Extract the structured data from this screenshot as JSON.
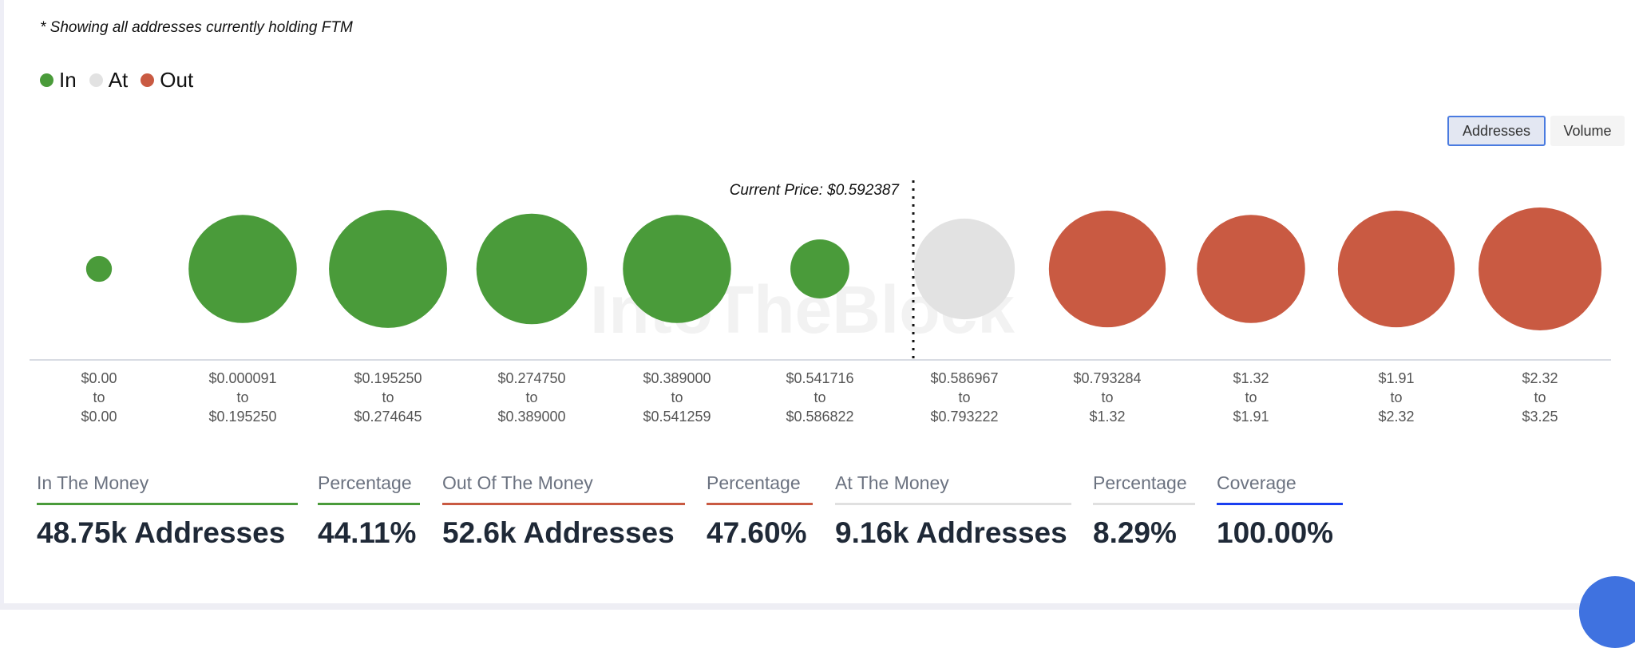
{
  "note": "* Showing all addresses currently holding FTM",
  "legend": [
    {
      "label": "In",
      "color": "#4a9b3a"
    },
    {
      "label": "At",
      "color": "#e2e2e2"
    },
    {
      "label": "Out",
      "color": "#c95a42"
    }
  ],
  "toggle": {
    "addresses": "Addresses",
    "volume": "Volume",
    "selected": "Addresses"
  },
  "watermark": "IntoTheBlock",
  "chart_data": {
    "type": "bubble",
    "current_price_label": "Current Price: $0.592387",
    "buckets": [
      {
        "from": "$0.00",
        "to": "$0.00",
        "sep": "to",
        "status": "In",
        "relative_size": 0.21
      },
      {
        "from": "$0.000091",
        "to": "$0.195250",
        "sep": "to",
        "status": "In",
        "relative_size": 0.88
      },
      {
        "from": "$0.195250",
        "to": "$0.274645",
        "sep": "to",
        "status": "In",
        "relative_size": 0.96
      },
      {
        "from": "$0.274750",
        "to": "$0.389000",
        "sep": "to",
        "status": "In",
        "relative_size": 0.9
      },
      {
        "from": "$0.389000",
        "to": "$0.541259",
        "sep": "to",
        "status": "In",
        "relative_size": 0.88
      },
      {
        "from": "$0.541716",
        "to": "$0.586822",
        "sep": "to",
        "status": "In",
        "relative_size": 0.48
      },
      {
        "from": "$0.586967",
        "to": "$0.793222",
        "sep": "to",
        "status": "At",
        "relative_size": 0.82
      },
      {
        "from": "$0.793284",
        "to": "$1.32",
        "sep": "to",
        "status": "Out",
        "relative_size": 0.95
      },
      {
        "from": "$1.32",
        "to": "$1.91",
        "sep": "to",
        "status": "Out",
        "relative_size": 0.88
      },
      {
        "from": "$1.91",
        "to": "$2.32",
        "sep": "to",
        "status": "Out",
        "relative_size": 0.95
      },
      {
        "from": "$2.32",
        "to": "$3.25",
        "sep": "to",
        "status": "Out",
        "relative_size": 1.0
      }
    ]
  },
  "stats": [
    {
      "header": "In The Money",
      "value": "48.75k Addresses",
      "color": "#4a9b3a"
    },
    {
      "header": "Percentage",
      "value": "44.11%",
      "color": "#4a9b3a"
    },
    {
      "header": "Out Of The Money",
      "value": "52.6k Addresses",
      "color": "#c95a42"
    },
    {
      "header": "Percentage",
      "value": "47.60%",
      "color": "#c95a42"
    },
    {
      "header": "At The Money",
      "value": "9.16k Addresses",
      "color": "#e0e0e0"
    },
    {
      "header": "Percentage",
      "value": "8.29%",
      "color": "#e0e0e0"
    },
    {
      "header": "Coverage",
      "value": "100.00%",
      "color": "#1a3ff0"
    }
  ]
}
